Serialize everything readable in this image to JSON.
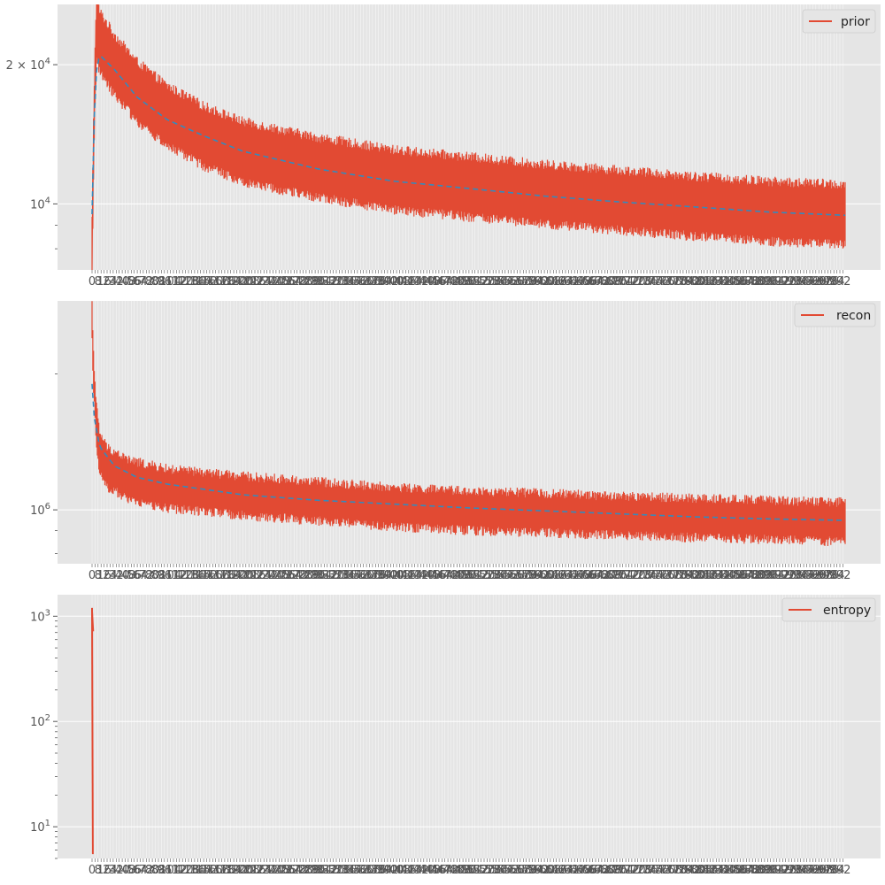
{
  "chart_data": [
    {
      "type": "line",
      "yscale": "log",
      "ylim": [
        7200,
        27000
      ],
      "yticks": [
        {
          "value": 10000,
          "base": "10",
          "exp": "4",
          "prefix": ""
        },
        {
          "value": 20000,
          "base": "10",
          "exp": "4",
          "prefix": "2 × "
        }
      ],
      "x_count": 1000,
      "grid": true,
      "legend": {
        "label": "prior",
        "placement": "top-right"
      },
      "series": [
        {
          "style": "solid",
          "color": "#E24A33",
          "profile": [
            [
              0,
              8000
            ],
            [
              2,
              13000
            ],
            [
              4,
              19000
            ],
            [
              6,
              24000
            ],
            [
              10,
              22500
            ],
            [
              30,
              20000
            ],
            [
              60,
              17500
            ],
            [
              100,
              15500
            ],
            [
              150,
              14000
            ],
            [
              200,
              13000
            ],
            [
              300,
              12000
            ],
            [
              400,
              11300
            ],
            [
              500,
              10900
            ],
            [
              600,
              10500
            ],
            [
              700,
              10200
            ],
            [
              800,
              9900
            ],
            [
              900,
              9650
            ],
            [
              999,
              9500
            ]
          ],
          "band_low": 0.86,
          "band_high": 1.16
        },
        {
          "style": "dashed",
          "color": "#348ABD",
          "profile": [
            [
              0,
              9500
            ],
            [
              2,
              14000
            ],
            [
              5,
              19000
            ],
            [
              10,
              21000
            ],
            [
              30,
              19500
            ],
            [
              60,
              17000
            ],
            [
              100,
              15200
            ],
            [
              150,
              14000
            ],
            [
              200,
              13000
            ],
            [
              300,
              11900
            ],
            [
              400,
              11200
            ],
            [
              500,
              10800
            ],
            [
              600,
              10400
            ],
            [
              700,
              10100
            ],
            [
              800,
              9850
            ],
            [
              900,
              9600
            ],
            [
              999,
              9450
            ]
          ]
        }
      ]
    },
    {
      "type": "line",
      "yscale": "log",
      "ylim": [
        760000,
        2900000
      ],
      "yticks": [
        {
          "value": 1000000,
          "base": "10",
          "exp": "6",
          "prefix": ""
        }
      ],
      "x_count": 1000,
      "grid": true,
      "legend": {
        "label": "recon",
        "placement": "top-right"
      },
      "series": [
        {
          "style": "solid",
          "color": "#E24A33",
          "profile": [
            [
              0,
              2600000
            ],
            [
              2,
              2050000
            ],
            [
              5,
              1600000
            ],
            [
              10,
              1350000
            ],
            [
              20,
              1250000
            ],
            [
              50,
              1170000
            ],
            [
              100,
              1120000
            ],
            [
              200,
              1080000
            ],
            [
              300,
              1050000
            ],
            [
              400,
              1020000
            ],
            [
              500,
              1000000
            ],
            [
              600,
              990000
            ],
            [
              700,
              975000
            ],
            [
              800,
              965000
            ],
            [
              900,
              955000
            ],
            [
              999,
              945000
            ]
          ],
          "band_low": 0.9,
          "band_high": 1.1
        },
        {
          "style": "dashed",
          "color": "#348ABD",
          "profile": [
            [
              0,
              1900000
            ],
            [
              3,
              1600000
            ],
            [
              10,
              1380000
            ],
            [
              30,
              1250000
            ],
            [
              60,
              1180000
            ],
            [
              100,
              1140000
            ],
            [
              200,
              1080000
            ],
            [
              300,
              1050000
            ],
            [
              400,
              1030000
            ],
            [
              500,
              1010000
            ],
            [
              600,
              995000
            ],
            [
              700,
              980000
            ],
            [
              800,
              965000
            ],
            [
              900,
              955000
            ],
            [
              999,
              948000
            ]
          ]
        }
      ]
    },
    {
      "type": "line",
      "yscale": "log",
      "ylim": [
        5,
        1600
      ],
      "yticks": [
        {
          "value": 10,
          "base": "10",
          "exp": "1",
          "prefix": ""
        },
        {
          "value": 100,
          "base": "10",
          "exp": "2",
          "prefix": ""
        },
        {
          "value": 1000,
          "base": "10",
          "exp": "3",
          "prefix": ""
        }
      ],
      "x_count": 1000,
      "grid": true,
      "legend": {
        "label": "entropy",
        "placement": "top-right"
      },
      "series": [
        {
          "style": "spike",
          "color": "#E24A33",
          "profile": [
            [
              0,
              1200
            ],
            [
              1,
              5.5
            ]
          ]
        }
      ]
    }
  ]
}
